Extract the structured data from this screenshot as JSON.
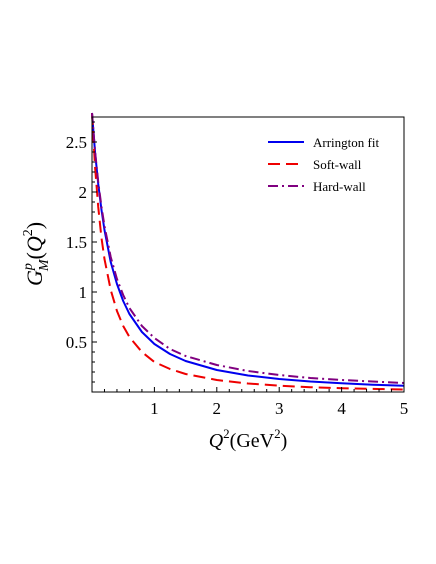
{
  "chart_data": {
    "type": "line",
    "xlim": [
      0,
      5
    ],
    "ylim": [
      0,
      2.75
    ],
    "x_ticks": [
      1,
      2,
      3,
      4,
      5
    ],
    "x_tick_labels": [
      "1",
      "2",
      "3",
      "4",
      "5"
    ],
    "y_ticks": [
      0.5,
      1,
      1.5,
      2,
      2.5
    ],
    "y_tick_labels": [
      "0.5",
      "1",
      "1.5",
      "2",
      "2.5"
    ],
    "xlabel": {
      "symbol": "Q",
      "sup": "2",
      "unit": "(GeV",
      "unit_sup": "2",
      "close": ")"
    },
    "ylabel": {
      "symbol": "G",
      "sup": "p",
      "sub": "M",
      "arg_open": "(",
      "arg_symbol": "Q",
      "arg_sup": "2",
      "arg_close": ")"
    },
    "legend_position": "top-right",
    "grid": false,
    "series": [
      {
        "name": "Arrington fit",
        "color": "#0000ee",
        "dash": "solid",
        "x": [
          0.0,
          0.05,
          0.1,
          0.15,
          0.2,
          0.3,
          0.4,
          0.5,
          0.6,
          0.8,
          1.0,
          1.25,
          1.5,
          2.0,
          2.5,
          3.0,
          3.5,
          4.0,
          4.5,
          5.0
        ],
        "y": [
          2.79,
          2.39,
          2.08,
          1.83,
          1.62,
          1.3,
          1.08,
          0.91,
          0.78,
          0.6,
          0.48,
          0.38,
          0.31,
          0.22,
          0.165,
          0.13,
          0.105,
          0.087,
          0.073,
          0.062
        ]
      },
      {
        "name": "Soft-wall",
        "color": "#ee0000",
        "dash": "dashed",
        "x": [
          0.0,
          0.05,
          0.1,
          0.15,
          0.2,
          0.3,
          0.4,
          0.5,
          0.6,
          0.8,
          1.0,
          1.25,
          1.5,
          2.0,
          2.5,
          3.0,
          3.5,
          4.0,
          4.5,
          5.0
        ],
        "y": [
          2.79,
          2.24,
          1.85,
          1.55,
          1.33,
          1.02,
          0.81,
          0.66,
          0.55,
          0.4,
          0.3,
          0.23,
          0.18,
          0.12,
          0.085,
          0.063,
          0.048,
          0.038,
          0.031,
          0.025
        ]
      },
      {
        "name": "Hard-wall",
        "color": "#800080",
        "dash": "dashdot",
        "x": [
          0.0,
          0.05,
          0.1,
          0.15,
          0.2,
          0.3,
          0.4,
          0.5,
          0.6,
          0.8,
          1.0,
          1.25,
          1.5,
          2.0,
          2.5,
          3.0,
          3.5,
          4.0,
          4.5,
          5.0
        ],
        "y": [
          2.79,
          2.4,
          2.1,
          1.86,
          1.66,
          1.35,
          1.13,
          0.97,
          0.84,
          0.66,
          0.54,
          0.43,
          0.36,
          0.27,
          0.21,
          0.17,
          0.14,
          0.12,
          0.105,
          0.09
        ]
      }
    ]
  }
}
